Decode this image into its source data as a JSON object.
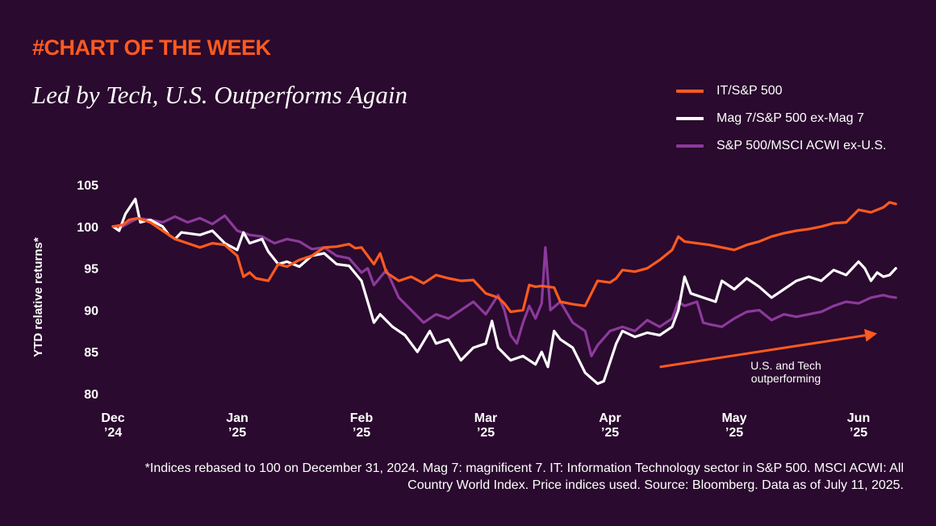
{
  "header": {
    "tag": "#CHART OF THE WEEK",
    "title": "Led by Tech, U.S. Outperforms Again"
  },
  "footnote": "*Indices rebased to 100 on December 31, 2024. Mag 7: magnificent 7. IT: Information Technology sector in S&P 500. MSCI ACWI: All Country World Index. Price indices used. Source: Bloomberg. Data as of July 11, 2025.",
  "colors": {
    "background": "#2a0a2e",
    "orange": "#ff5a1f",
    "white": "#ffffff",
    "purple": "#8b3a9c"
  },
  "chart_data": {
    "type": "line",
    "title": "Led by Tech, U.S. Outperforms Again",
    "xlabel": "",
    "ylabel": "YTD relative returns*",
    "ylim": [
      80,
      105
    ],
    "yticks": [
      80,
      85,
      90,
      95,
      100,
      105
    ],
    "xlim": [
      0,
      6.3
    ],
    "x_ticks": [
      {
        "month": "Dec",
        "year": "’24",
        "x": 0
      },
      {
        "month": "Jan",
        "year": "’25",
        "x": 1
      },
      {
        "month": "Feb",
        "year": "’25",
        "x": 2
      },
      {
        "month": "Mar",
        "year": "’25",
        "x": 3
      },
      {
        "month": "Apr",
        "year": "’25",
        "x": 4
      },
      {
        "month": "May",
        "year": "’25",
        "x": 5
      },
      {
        "month": "Jun",
        "year": "’25",
        "x": 6
      }
    ],
    "legend_position": "top-right",
    "grid": false,
    "annotation": {
      "lines": [
        "U.S. and Tech",
        "outperforming"
      ],
      "arrow_from": [
        4.4,
        83.2
      ],
      "arrow_to": [
        6.15,
        87.2
      ]
    },
    "series": [
      {
        "name": "IT/S&P 500",
        "color": "#ff5a1f",
        "points": [
          [
            0,
            100
          ],
          [
            0.08,
            100.2
          ],
          [
            0.13,
            100.8
          ],
          [
            0.2,
            101
          ],
          [
            0.3,
            100.5
          ],
          [
            0.4,
            99.5
          ],
          [
            0.5,
            98.5
          ],
          [
            0.6,
            98
          ],
          [
            0.7,
            97.5
          ],
          [
            0.8,
            98
          ],
          [
            0.9,
            97.8
          ],
          [
            1.0,
            96.5
          ],
          [
            1.05,
            94
          ],
          [
            1.1,
            94.5
          ],
          [
            1.15,
            93.8
          ],
          [
            1.25,
            93.5
          ],
          [
            1.33,
            95.5
          ],
          [
            1.4,
            95.2
          ],
          [
            1.5,
            96
          ],
          [
            1.6,
            96.5
          ],
          [
            1.7,
            97.5
          ],
          [
            1.8,
            97.6
          ],
          [
            1.9,
            97.9
          ],
          [
            1.95,
            97.4
          ],
          [
            2.0,
            97.5
          ],
          [
            2.05,
            96.5
          ],
          [
            2.1,
            95.5
          ],
          [
            2.15,
            96.8
          ],
          [
            2.2,
            94.5
          ],
          [
            2.3,
            93.5
          ],
          [
            2.4,
            94
          ],
          [
            2.5,
            93.2
          ],
          [
            2.6,
            94.2
          ],
          [
            2.7,
            93.8
          ],
          [
            2.8,
            93.5
          ],
          [
            2.9,
            93.6
          ],
          [
            3.0,
            92
          ],
          [
            3.1,
            91.5
          ],
          [
            3.15,
            90.8
          ],
          [
            3.2,
            89.8
          ],
          [
            3.3,
            90
          ],
          [
            3.35,
            93
          ],
          [
            3.4,
            92.8
          ],
          [
            3.45,
            92.9
          ],
          [
            3.55,
            92.7
          ],
          [
            3.6,
            91
          ],
          [
            3.7,
            90.7
          ],
          [
            3.8,
            90.5
          ],
          [
            3.9,
            93.5
          ],
          [
            4.0,
            93.3
          ],
          [
            4.05,
            93.8
          ],
          [
            4.1,
            94.8
          ],
          [
            4.2,
            94.6
          ],
          [
            4.3,
            95
          ],
          [
            4.4,
            96
          ],
          [
            4.5,
            97.2
          ],
          [
            4.55,
            98.8
          ],
          [
            4.6,
            98.2
          ],
          [
            4.8,
            97.8
          ],
          [
            4.9,
            97.5
          ],
          [
            5.0,
            97.2
          ],
          [
            5.1,
            97.8
          ],
          [
            5.2,
            98.2
          ],
          [
            5.3,
            98.8
          ],
          [
            5.4,
            99.2
          ],
          [
            5.5,
            99.5
          ],
          [
            5.6,
            99.7
          ],
          [
            5.7,
            100
          ],
          [
            5.8,
            100.4
          ],
          [
            5.9,
            100.5
          ],
          [
            6.0,
            102
          ],
          [
            6.1,
            101.7
          ],
          [
            6.2,
            102.3
          ],
          [
            6.25,
            102.9
          ],
          [
            6.3,
            102.7
          ]
        ]
      },
      {
        "name": "Mag 7/S&P 500 ex-Mag 7",
        "color": "#ffffff",
        "points": [
          [
            0,
            100
          ],
          [
            0.05,
            99.5
          ],
          [
            0.1,
            101.5
          ],
          [
            0.18,
            103.3
          ],
          [
            0.22,
            100.5
          ],
          [
            0.3,
            100.8
          ],
          [
            0.4,
            100
          ],
          [
            0.45,
            99
          ],
          [
            0.5,
            98.5
          ],
          [
            0.55,
            99.3
          ],
          [
            0.7,
            99
          ],
          [
            0.8,
            99.5
          ],
          [
            0.9,
            98
          ],
          [
            1.0,
            97.2
          ],
          [
            1.05,
            99.3
          ],
          [
            1.1,
            98
          ],
          [
            1.2,
            98.5
          ],
          [
            1.25,
            97
          ],
          [
            1.33,
            95.5
          ],
          [
            1.4,
            95.8
          ],
          [
            1.5,
            95.2
          ],
          [
            1.6,
            96.5
          ],
          [
            1.7,
            96.8
          ],
          [
            1.8,
            95.5
          ],
          [
            1.9,
            95.3
          ],
          [
            2.0,
            93.5
          ],
          [
            2.05,
            91
          ],
          [
            2.1,
            88.5
          ],
          [
            2.15,
            89.5
          ],
          [
            2.25,
            88
          ],
          [
            2.35,
            87
          ],
          [
            2.45,
            85
          ],
          [
            2.55,
            87.5
          ],
          [
            2.6,
            86
          ],
          [
            2.7,
            86.5
          ],
          [
            2.8,
            84
          ],
          [
            2.9,
            85.5
          ],
          [
            3.0,
            86
          ],
          [
            3.05,
            88.7
          ],
          [
            3.1,
            85.5
          ],
          [
            3.2,
            84
          ],
          [
            3.3,
            84.5
          ],
          [
            3.4,
            83.5
          ],
          [
            3.45,
            85
          ],
          [
            3.5,
            83.2
          ],
          [
            3.55,
            87.5
          ],
          [
            3.6,
            86.5
          ],
          [
            3.7,
            85.5
          ],
          [
            3.8,
            82.5
          ],
          [
            3.9,
            81.2
          ],
          [
            3.95,
            81.5
          ],
          [
            4.05,
            86
          ],
          [
            4.1,
            87.5
          ],
          [
            4.2,
            86.8
          ],
          [
            4.3,
            87.3
          ],
          [
            4.4,
            87
          ],
          [
            4.5,
            88
          ],
          [
            4.55,
            90
          ],
          [
            4.6,
            94
          ],
          [
            4.65,
            92
          ],
          [
            4.75,
            91.5
          ],
          [
            4.85,
            91
          ],
          [
            4.9,
            93.5
          ],
          [
            5.0,
            92.5
          ],
          [
            5.1,
            93.8
          ],
          [
            5.2,
            92.8
          ],
          [
            5.3,
            91.5
          ],
          [
            5.4,
            92.5
          ],
          [
            5.5,
            93.5
          ],
          [
            5.6,
            94
          ],
          [
            5.7,
            93.5
          ],
          [
            5.8,
            94.8
          ],
          [
            5.9,
            94.2
          ],
          [
            6.0,
            95.8
          ],
          [
            6.05,
            95
          ],
          [
            6.1,
            93.5
          ],
          [
            6.15,
            94.5
          ],
          [
            6.2,
            94
          ],
          [
            6.25,
            94.2
          ],
          [
            6.3,
            95
          ]
        ]
      },
      {
        "name": "S&P 500/MSCI ACWI ex-U.S.",
        "color": "#8b3a9c",
        "points": [
          [
            0,
            100
          ],
          [
            0.05,
            99.8
          ],
          [
            0.1,
            100.2
          ],
          [
            0.2,
            101
          ],
          [
            0.3,
            100.8
          ],
          [
            0.4,
            100.5
          ],
          [
            0.5,
            101.2
          ],
          [
            0.6,
            100.5
          ],
          [
            0.7,
            101
          ],
          [
            0.8,
            100.3
          ],
          [
            0.9,
            101.3
          ],
          [
            1.0,
            99.5
          ],
          [
            1.1,
            99
          ],
          [
            1.2,
            98.8
          ],
          [
            1.3,
            98
          ],
          [
            1.4,
            98.5
          ],
          [
            1.5,
            98.2
          ],
          [
            1.6,
            97.3
          ],
          [
            1.7,
            97.5
          ],
          [
            1.8,
            96.5
          ],
          [
            1.9,
            96.2
          ],
          [
            2.0,
            94.5
          ],
          [
            2.05,
            95
          ],
          [
            2.1,
            93
          ],
          [
            2.2,
            94.8
          ],
          [
            2.3,
            91.5
          ],
          [
            2.4,
            90
          ],
          [
            2.5,
            88.5
          ],
          [
            2.6,
            89.5
          ],
          [
            2.7,
            89
          ],
          [
            2.8,
            90
          ],
          [
            2.9,
            91
          ],
          [
            3.0,
            89.5
          ],
          [
            3.1,
            91.8
          ],
          [
            3.15,
            90
          ],
          [
            3.2,
            87
          ],
          [
            3.25,
            86
          ],
          [
            3.3,
            88.5
          ],
          [
            3.35,
            90.5
          ],
          [
            3.4,
            89
          ],
          [
            3.45,
            90.8
          ],
          [
            3.48,
            97.5
          ],
          [
            3.52,
            90
          ],
          [
            3.6,
            91
          ],
          [
            3.7,
            88.5
          ],
          [
            3.8,
            87.5
          ],
          [
            3.85,
            84.5
          ],
          [
            3.9,
            85.8
          ],
          [
            4.0,
            87.5
          ],
          [
            4.1,
            88
          ],
          [
            4.2,
            87.5
          ],
          [
            4.3,
            88.8
          ],
          [
            4.4,
            88
          ],
          [
            4.5,
            89
          ],
          [
            4.55,
            91
          ],
          [
            4.6,
            90.5
          ],
          [
            4.7,
            91
          ],
          [
            4.75,
            88.5
          ],
          [
            4.8,
            88.3
          ],
          [
            4.9,
            88
          ],
          [
            5.0,
            89
          ],
          [
            5.1,
            89.8
          ],
          [
            5.2,
            90
          ],
          [
            5.3,
            88.8
          ],
          [
            5.4,
            89.5
          ],
          [
            5.5,
            89.2
          ],
          [
            5.6,
            89.5
          ],
          [
            5.7,
            89.8
          ],
          [
            5.8,
            90.5
          ],
          [
            5.9,
            91
          ],
          [
            6.0,
            90.8
          ],
          [
            6.1,
            91.5
          ],
          [
            6.2,
            91.8
          ],
          [
            6.25,
            91.6
          ],
          [
            6.3,
            91.5
          ]
        ]
      }
    ]
  }
}
